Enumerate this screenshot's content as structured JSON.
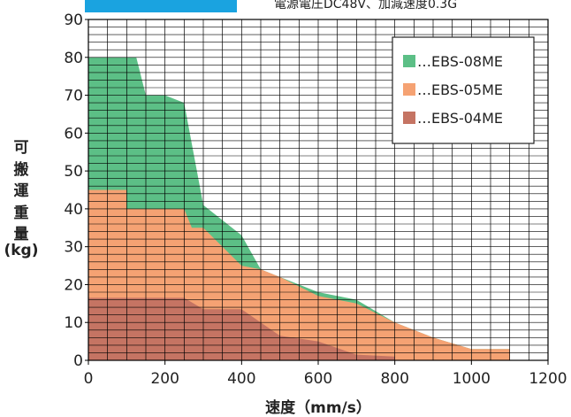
{
  "header": {
    "tag_text": "",
    "condition": "電源電圧DC48V、加減速度0.3G"
  },
  "chart_data": {
    "type": "area",
    "title": "",
    "xlabel": "速度（mm/s）",
    "ylabel_lines": [
      "可",
      "搬",
      "運",
      "重",
      "量",
      "(kg)"
    ],
    "xlim": [
      0,
      1200
    ],
    "ylim": [
      0,
      90
    ],
    "x_ticks": [
      0,
      200,
      400,
      600,
      800,
      1000,
      1200
    ],
    "y_ticks": [
      0,
      10,
      20,
      30,
      40,
      50,
      60,
      70,
      80,
      90
    ],
    "grid": true,
    "legend_position": "top-right",
    "series": [
      {
        "name": "…EBS-08ME",
        "color": "#5cbf86",
        "points": [
          [
            0,
            80
          ],
          [
            125,
            80
          ],
          [
            150,
            70
          ],
          [
            200,
            70
          ],
          [
            250,
            68
          ],
          [
            300,
            41
          ],
          [
            350,
            37
          ],
          [
            400,
            33
          ],
          [
            450,
            24
          ],
          [
            500,
            22
          ],
          [
            600,
            18
          ],
          [
            700,
            16
          ],
          [
            800,
            10
          ],
          [
            900,
            6
          ],
          [
            1000,
            3
          ],
          [
            1100,
            3
          ],
          [
            1100,
            0
          ],
          [
            0,
            0
          ]
        ]
      },
      {
        "name": "…EBS-05ME",
        "color": "#f5a273",
        "points": [
          [
            0,
            45
          ],
          [
            100,
            45
          ],
          [
            100,
            40
          ],
          [
            250,
            40
          ],
          [
            270,
            35
          ],
          [
            300,
            35
          ],
          [
            400,
            25
          ],
          [
            450,
            24
          ],
          [
            500,
            22
          ],
          [
            600,
            17
          ],
          [
            700,
            15
          ],
          [
            800,
            10
          ],
          [
            900,
            6
          ],
          [
            1000,
            3
          ],
          [
            1100,
            3
          ],
          [
            1100,
            0
          ],
          [
            0,
            0
          ]
        ]
      },
      {
        "name": "…EBS-04ME",
        "color": "#c57463",
        "points": [
          [
            0,
            16.5
          ],
          [
            250,
            16.5
          ],
          [
            300,
            13.5
          ],
          [
            400,
            13.5
          ],
          [
            500,
            6.5
          ],
          [
            600,
            5
          ],
          [
            700,
            1.5
          ],
          [
            800,
            1
          ],
          [
            800,
            0
          ],
          [
            0,
            0
          ]
        ]
      }
    ]
  }
}
